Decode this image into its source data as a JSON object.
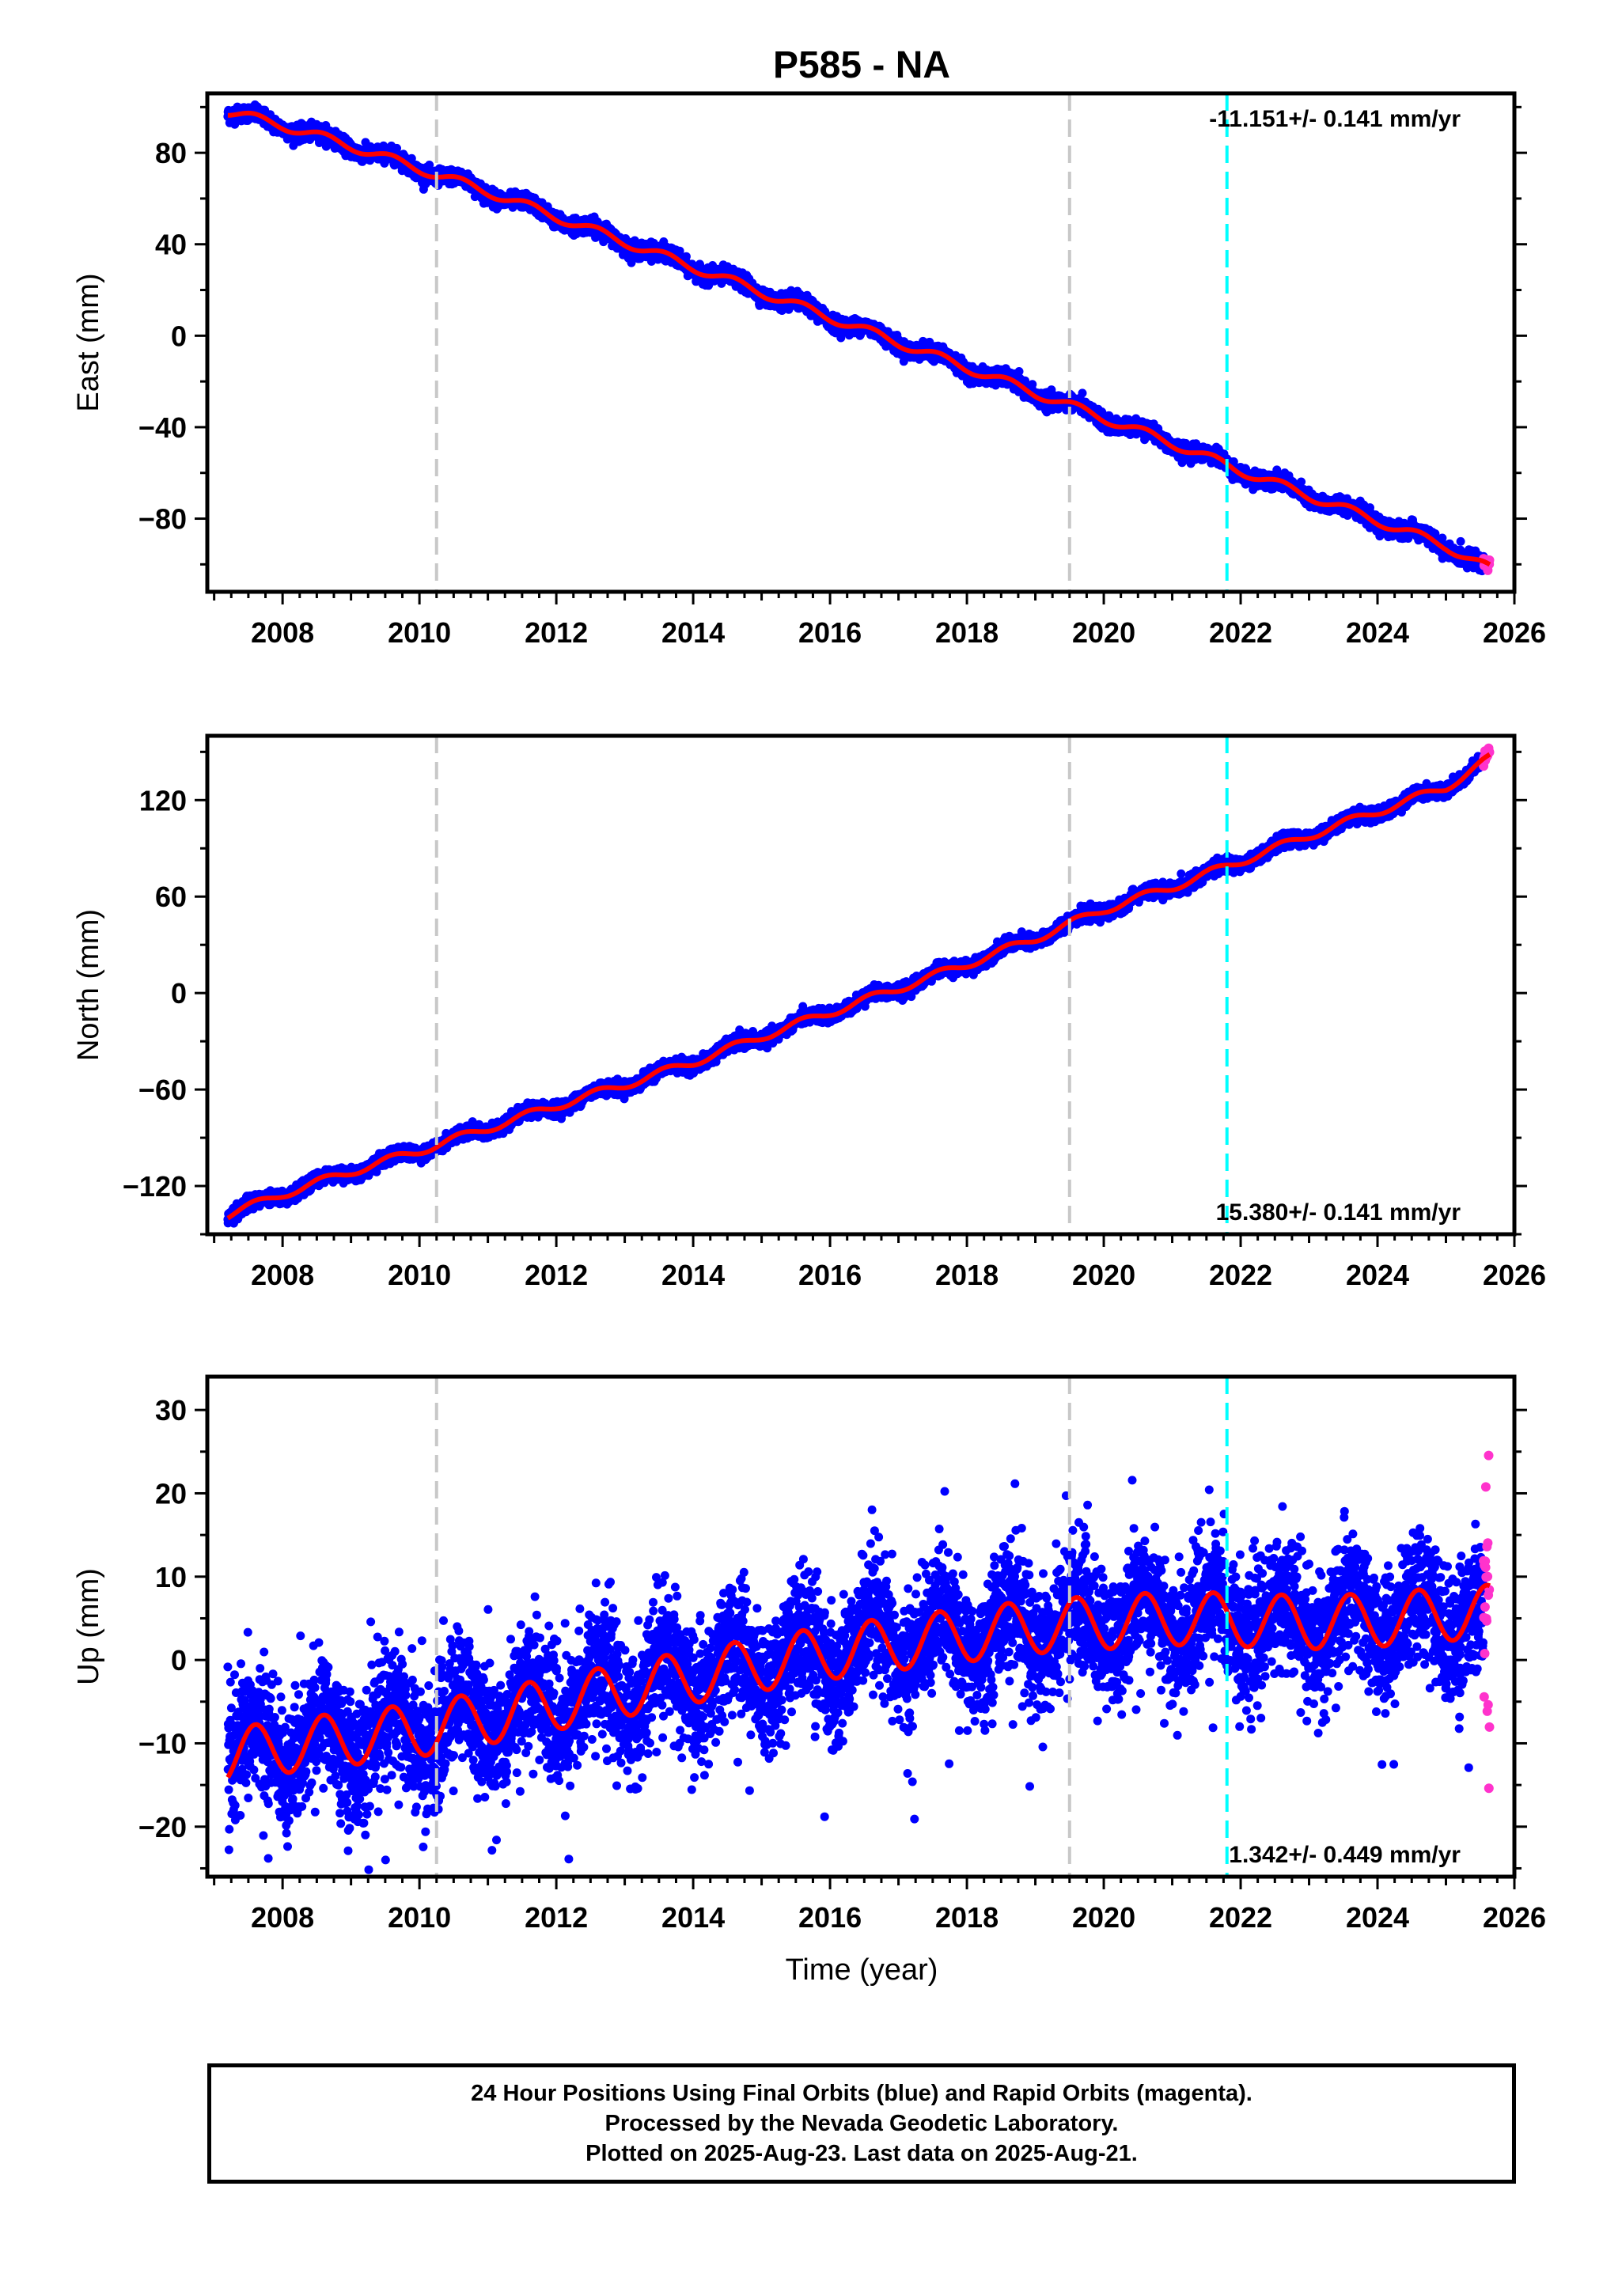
{
  "title": "P585 - NA",
  "xlabel": "Time (year)",
  "colors": {
    "final_orbits": "#0000ff",
    "rapid_orbits": "#ff33cc",
    "model": "#ff0000",
    "gray_marker": "#c8c8c8",
    "cyan_marker": "#00ffff"
  },
  "footer": {
    "line1": "24 Hour Positions Using Final Orbits (blue) and Rapid Orbits (magenta).",
    "line2": "Processed by the Nevada Geodetic Laboratory.",
    "line3": "Plotted on 2025-Aug-23. Last data on 2025-Aug-21."
  },
  "chart_data": [
    {
      "type": "scatter",
      "ylabel": "East (mm)",
      "rate_label": "-11.151+/- 0.141 mm/yr",
      "rate_label_position": "top-right",
      "xlim": [
        2006.9,
        2026.0
      ],
      "ylim": [
        -112,
        106
      ],
      "xticks": [
        2008,
        2010,
        2012,
        2014,
        2016,
        2018,
        2020,
        2022,
        2024,
        2026
      ],
      "yticks": [
        -80,
        -40,
        0,
        40,
        80
      ],
      "ytick_labels": [
        "−80",
        "−40",
        "0",
        "40",
        "80"
      ],
      "data_start": 2007.2,
      "data_end": 2025.64,
      "rapid_start": 2025.55,
      "gray_markers": [
        2010.25,
        2019.5
      ],
      "cyan_markers": [
        2021.8
      ],
      "model": {
        "x": [
          2007.2,
          2008.0,
          2009.0,
          2010.0,
          2011.0,
          2012.0,
          2013.0,
          2014.0,
          2015.0,
          2016.0,
          2017.0,
          2018.0,
          2019.0,
          2020.0,
          2021.0,
          2022.0,
          2023.0,
          2024.0,
          2025.0,
          2025.64
        ],
        "y": [
          98,
          92,
          83,
          73,
          63,
          52,
          41,
          30,
          19,
          8,
          -3,
          -14,
          -25,
          -36,
          -47,
          -59,
          -70,
          -81,
          -92,
          -102
        ]
      },
      "seasonal_amplitude": 2.0,
      "scatter_sigma": 1.6
    },
    {
      "type": "scatter",
      "ylabel": "North (mm)",
      "rate_label": "15.380+/- 0.141 mm/yr",
      "rate_label_position": "bottom-right",
      "xlim": [
        2006.9,
        2026.0
      ],
      "ylim": [
        -150,
        160
      ],
      "xticks": [
        2008,
        2010,
        2012,
        2014,
        2016,
        2018,
        2020,
        2022,
        2024,
        2026
      ],
      "yticks": [
        -120,
        -60,
        0,
        60,
        120
      ],
      "ytick_labels": [
        "−120",
        "−60",
        "0",
        "60",
        "120"
      ],
      "data_start": 2007.2,
      "data_end": 2025.64,
      "rapid_start": 2025.55,
      "gray_markers": [
        2010.25,
        2019.5
      ],
      "cyan_markers": [
        2021.8
      ],
      "model": {
        "x": [
          2007.2,
          2008.0,
          2009.0,
          2010.0,
          2011.0,
          2012.0,
          2013.0,
          2014.0,
          2015.0,
          2016.0,
          2017.0,
          2018.0,
          2019.0,
          2020.0,
          2021.0,
          2022.0,
          2023.0,
          2024.0,
          2025.0,
          2025.64
        ],
        "y": [
          -138,
          -125,
          -111,
          -98,
          -84,
          -70,
          -57,
          -43,
          -27,
          -12,
          3,
          18,
          34,
          52,
          66,
          82,
          98,
          113,
          128,
          146
        ]
      },
      "seasonal_amplitude": 2.5,
      "scatter_sigma": 2.0
    },
    {
      "type": "scatter",
      "ylabel": "Up (mm)",
      "rate_label": "1.342+/- 0.449 mm/yr",
      "rate_label_position": "bottom-right",
      "xlim": [
        2006.9,
        2026.0
      ],
      "ylim": [
        -26,
        34
      ],
      "xticks": [
        2008,
        2010,
        2012,
        2014,
        2016,
        2018,
        2020,
        2022,
        2024,
        2026
      ],
      "yticks": [
        -20,
        -10,
        0,
        10,
        20,
        30
      ],
      "ytick_labels": [
        "−20",
        "−10",
        "0",
        "10",
        "20",
        "30"
      ],
      "data_start": 2007.2,
      "data_end": 2025.64,
      "rapid_start": 2025.55,
      "gray_markers": [
        2010.25,
        2019.5
      ],
      "cyan_markers": [
        2021.8
      ],
      "model": {
        "x": [
          2007.2,
          2008.0,
          2009.0,
          2010.0,
          2011.0,
          2012.0,
          2013.0,
          2014.0,
          2015.0,
          2016.0,
          2017.0,
          2018.0,
          2019.0,
          2020.0,
          2021.0,
          2022.0,
          2023.0,
          2024.0,
          2025.0,
          2025.64
        ],
        "y": [
          -11.5,
          -10.4,
          -9.4,
          -8.4,
          -6.9,
          -5.2,
          -3.6,
          -2.0,
          -0.5,
          0.9,
          2.0,
          3.0,
          4.0,
          4.5,
          5.0,
          4.8,
          4.5,
          4.8,
          5.5,
          5.8
        ]
      },
      "seasonal_amplitude": 3.2,
      "scatter_sigma": 3.8
    }
  ]
}
